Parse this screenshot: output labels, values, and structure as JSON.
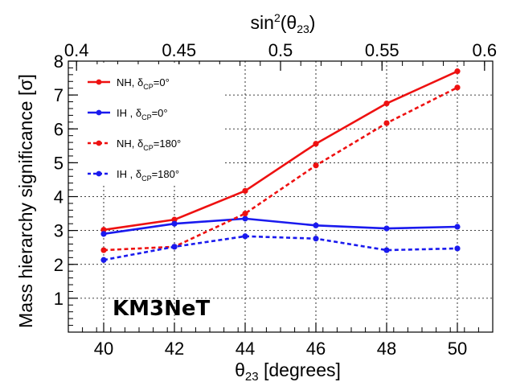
{
  "chart_data": {
    "type": "line",
    "x": [
      40,
      42,
      44,
      46,
      48,
      50
    ],
    "xlim": [
      39,
      51
    ],
    "ylim": [
      0,
      8
    ],
    "xticks": [
      40,
      42,
      44,
      46,
      48,
      50
    ],
    "yticks": [
      1,
      2,
      3,
      4,
      5,
      6,
      7,
      8
    ],
    "xlabel": "θ",
    "xlabel_sub": "23",
    "xlabel_rest": " [degrees]",
    "ylabel": "Mass hierarchy significance [σ]",
    "top_axis": {
      "label_pre": "sin",
      "label_sup": "2",
      "label_mid": "(θ",
      "label_sub": "23",
      "label_post": ")",
      "ticks": [
        0.4,
        0.45,
        0.5,
        0.55,
        0.6
      ],
      "tick_labels": [
        "0.4",
        "0.45",
        "0.5",
        "0.55",
        "0.6"
      ]
    },
    "grid": true,
    "annotation": "KM3NeT",
    "legend_position": "top-left",
    "series": [
      {
        "name": "NH, δCP=0°",
        "label_main": "NH, δ",
        "label_sub": "CP",
        "label_end": "=0°",
        "color": "#ee1111",
        "dash": "solid",
        "values": [
          3.02,
          3.32,
          4.17,
          5.56,
          6.75,
          7.7
        ]
      },
      {
        "name": "IH , δCP=0°",
        "label_main": "IH  , δ",
        "label_sub": "CP",
        "label_end": "=0°",
        "color": "#1a1aee",
        "dash": "solid",
        "values": [
          2.9,
          3.2,
          3.35,
          3.15,
          3.06,
          3.11
        ]
      },
      {
        "name": "NH, δCP=180°",
        "label_main": "NH, δ",
        "label_sub": "CP",
        "label_end": "=180°",
        "color": "#ee1111",
        "dash": "dotted",
        "values": [
          2.42,
          2.52,
          3.5,
          4.92,
          6.17,
          7.22
        ]
      },
      {
        "name": "IH , δCP=180°",
        "label_main": "IH  , δ",
        "label_sub": "CP",
        "label_end": "=180°",
        "color": "#1a1aee",
        "dash": "dotted",
        "values": [
          2.13,
          2.52,
          2.83,
          2.76,
          2.42,
          2.47
        ]
      }
    ]
  }
}
